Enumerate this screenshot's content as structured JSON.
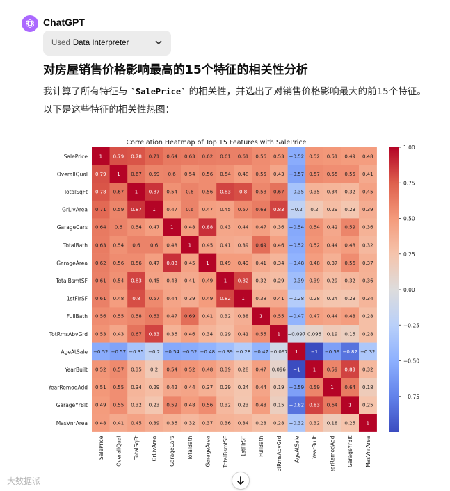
{
  "assistant": {
    "name": "ChatGPT",
    "avatar_icon": "openai-logo-icon",
    "avatar_color": "#ab68ff"
  },
  "tool": {
    "used_prefix": "Used",
    "tool_name": "Data Interpreter",
    "chevron_icon": "chevron-down-icon"
  },
  "heading": "对房屋销售价格影响最高的15个特征的相关性分析",
  "paragraph": {
    "part1": "我计算了所有特征与 ",
    "code": "`SalePrice`",
    "part2": " 的相关性，并选出了对销售价格影响最大的前15个特征。以下是这些特征的相关性热图："
  },
  "scroll_button_icon": "arrow-down-icon",
  "watermark": "大数据派",
  "chart_data": {
    "type": "heatmap",
    "title": "Correlation Heatmap of Top 15 Features with SalePrice",
    "xlabel": "",
    "ylabel": "",
    "labels": [
      "SalePrice",
      "OverallQual",
      "TotalSqFt",
      "GrLivArea",
      "GarageCars",
      "TotalBath",
      "GarageArea",
      "TotalBsmtSF",
      "1stFlrSF",
      "FullBath",
      "TotRmsAbvGrd",
      "AgeAtSale",
      "YearBuilt",
      "YearRemodAdd",
      "GarageYrBlt",
      "MasVnrArea"
    ],
    "values": [
      [
        1,
        0.79,
        0.78,
        0.71,
        0.64,
        0.63,
        0.62,
        0.61,
        0.61,
        0.56,
        0.53,
        -0.52,
        0.52,
        0.51,
        0.49,
        0.48
      ],
      [
        0.79,
        1,
        0.67,
        0.59,
        0.6,
        0.54,
        0.56,
        0.54,
        0.48,
        0.55,
        0.43,
        -0.57,
        0.57,
        0.55,
        0.55,
        0.41
      ],
      [
        0.78,
        0.67,
        1,
        0.87,
        0.54,
        0.6,
        0.56,
        0.83,
        0.8,
        0.58,
        0.67,
        -0.35,
        0.35,
        0.34,
        0.32,
        0.45
      ],
      [
        0.71,
        0.59,
        0.87,
        1,
        0.47,
        0.6,
        0.47,
        0.45,
        0.57,
        0.63,
        0.83,
        -0.2,
        0.2,
        0.29,
        0.23,
        0.39
      ],
      [
        0.64,
        0.6,
        0.54,
        0.47,
        1,
        0.48,
        0.88,
        0.43,
        0.44,
        0.47,
        0.36,
        -0.54,
        0.54,
        0.42,
        0.59,
        0.36
      ],
      [
        0.63,
        0.54,
        0.6,
        0.6,
        0.48,
        1,
        0.45,
        0.41,
        0.39,
        0.69,
        0.46,
        -0.52,
        0.52,
        0.44,
        0.48,
        0.32
      ],
      [
        0.62,
        0.56,
        0.56,
        0.47,
        0.88,
        0.45,
        1,
        0.49,
        0.49,
        0.41,
        0.34,
        -0.48,
        0.48,
        0.37,
        0.56,
        0.37
      ],
      [
        0.61,
        0.54,
        0.83,
        0.45,
        0.43,
        0.41,
        0.49,
        1,
        0.82,
        0.32,
        0.29,
        -0.39,
        0.39,
        0.29,
        0.32,
        0.36
      ],
      [
        0.61,
        0.48,
        0.8,
        0.57,
        0.44,
        0.39,
        0.49,
        0.82,
        1,
        0.38,
        0.41,
        -0.28,
        0.28,
        0.24,
        0.23,
        0.34
      ],
      [
        0.56,
        0.55,
        0.58,
        0.63,
        0.47,
        0.69,
        0.41,
        0.32,
        0.38,
        1,
        0.55,
        -0.47,
        0.47,
        0.44,
        0.48,
        0.28
      ],
      [
        0.53,
        0.43,
        0.67,
        0.83,
        0.36,
        0.46,
        0.34,
        0.29,
        0.41,
        0.55,
        1,
        -0.097,
        0.096,
        0.19,
        0.15,
        0.28
      ],
      [
        -0.52,
        -0.57,
        -0.35,
        -0.2,
        -0.54,
        -0.52,
        -0.48,
        -0.39,
        -0.28,
        -0.47,
        -0.097,
        1,
        -1,
        -0.59,
        -0.82,
        -0.32
      ],
      [
        0.52,
        0.57,
        0.35,
        0.2,
        0.54,
        0.52,
        0.48,
        0.39,
        0.28,
        0.47,
        0.096,
        -1,
        1,
        0.59,
        0.83,
        0.32
      ],
      [
        0.51,
        0.55,
        0.34,
        0.29,
        0.42,
        0.44,
        0.37,
        0.29,
        0.24,
        0.44,
        0.19,
        -0.59,
        0.59,
        1,
        0.64,
        0.18
      ],
      [
        0.49,
        0.55,
        0.32,
        0.23,
        0.59,
        0.48,
        0.56,
        0.32,
        0.23,
        0.48,
        0.15,
        -0.82,
        0.83,
        0.64,
        1,
        0.25
      ],
      [
        0.48,
        0.41,
        0.45,
        0.39,
        0.36,
        0.32,
        0.37,
        0.36,
        0.34,
        0.28,
        0.28,
        -0.32,
        0.32,
        0.18,
        0.25,
        1
      ]
    ],
    "colorbar": {
      "range": [
        -1,
        1
      ],
      "ticks": [
        "1.00",
        "0.75",
        "0.50",
        "0.25",
        "0.00",
        "−0.25",
        "−0.50",
        "−0.75"
      ],
      "colormap": "coolwarm"
    }
  }
}
